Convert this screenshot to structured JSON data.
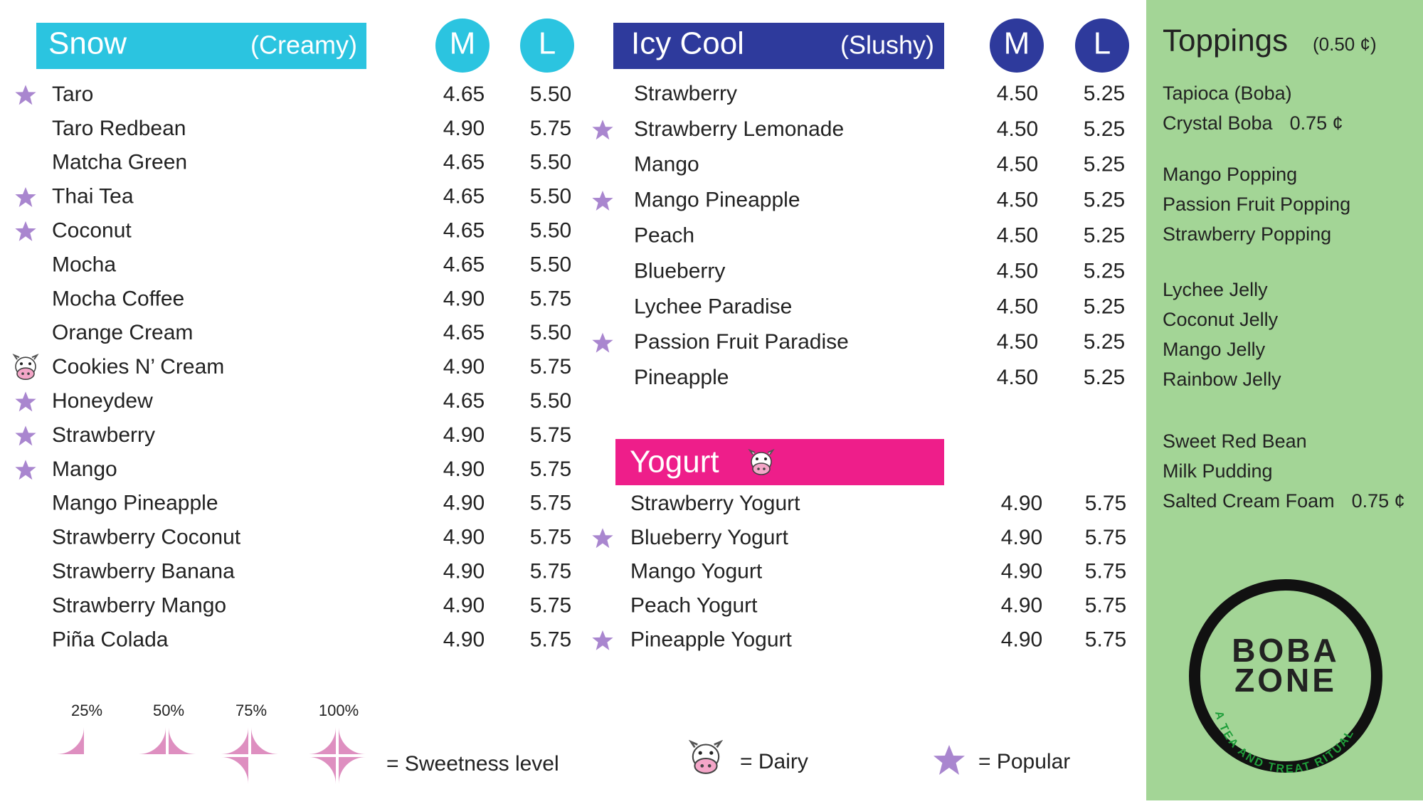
{
  "sections": {
    "snow": {
      "title": "Snow",
      "subtitle": "(Creamy)",
      "sizes": [
        "M",
        "L"
      ],
      "items": [
        {
          "name": "Taro",
          "m": "4.65",
          "l": "5.50",
          "mark": "popular"
        },
        {
          "name": "Taro Redbean",
          "m": "4.90",
          "l": "5.75",
          "mark": null
        },
        {
          "name": "Matcha Green",
          "m": "4.65",
          "l": "5.50",
          "mark": null
        },
        {
          "name": "Thai Tea",
          "m": "4.65",
          "l": "5.50",
          "mark": "popular"
        },
        {
          "name": "Coconut",
          "m": "4.65",
          "l": "5.50",
          "mark": "popular"
        },
        {
          "name": "Mocha",
          "m": "4.65",
          "l": "5.50",
          "mark": null
        },
        {
          "name": "Mocha Coffee",
          "m": "4.90",
          "l": "5.75",
          "mark": null
        },
        {
          "name": "Orange Cream",
          "m": "4.65",
          "l": "5.50",
          "mark": null
        },
        {
          "name": "Cookies N’ Cream",
          "m": "4.90",
          "l": "5.75",
          "mark": "dairy"
        },
        {
          "name": "Honeydew",
          "m": "4.65",
          "l": "5.50",
          "mark": "popular"
        },
        {
          "name": "Strawberry",
          "m": "4.90",
          "l": "5.75",
          "mark": "popular"
        },
        {
          "name": "Mango",
          "m": "4.90",
          "l": "5.75",
          "mark": "popular"
        },
        {
          "name": "Mango Pineapple",
          "m": "4.90",
          "l": "5.75",
          "mark": null
        },
        {
          "name": "Strawberry Coconut",
          "m": "4.90",
          "l": "5.75",
          "mark": null
        },
        {
          "name": "Strawberry Banana",
          "m": "4.90",
          "l": "5.75",
          "mark": null
        },
        {
          "name": "Strawberry Mango",
          "m": "4.90",
          "l": "5.75",
          "mark": null
        },
        {
          "name": "Piña Colada",
          "m": "4.90",
          "l": "5.75",
          "mark": null
        }
      ]
    },
    "icy": {
      "title": "Icy Cool",
      "subtitle": "(Slushy)",
      "sizes": [
        "M",
        "L"
      ],
      "items": [
        {
          "name": "Strawberry",
          "m": "4.50",
          "l": "5.25",
          "mark": null
        },
        {
          "name": "Strawberry Lemonade",
          "m": "4.50",
          "l": "5.25",
          "mark": "popular"
        },
        {
          "name": "Mango",
          "m": "4.50",
          "l": "5.25",
          "mark": null
        },
        {
          "name": "Mango Pineapple",
          "m": "4.50",
          "l": "5.25",
          "mark": "popular"
        },
        {
          "name": "Peach",
          "m": "4.50",
          "l": "5.25",
          "mark": null
        },
        {
          "name": "Blueberry",
          "m": "4.50",
          "l": "5.25",
          "mark": null
        },
        {
          "name": "Lychee Paradise",
          "m": "4.50",
          "l": "5.25",
          "mark": null
        },
        {
          "name": "Passion Fruit Paradise",
          "m": "4.50",
          "l": "5.25",
          "mark": "popular"
        },
        {
          "name": "Pineapple",
          "m": "4.50",
          "l": "5.25",
          "mark": null
        }
      ]
    },
    "yogurt": {
      "title": "Yogurt",
      "items": [
        {
          "name": "Strawberry Yogurt",
          "m": "4.90",
          "l": "5.75",
          "mark": null
        },
        {
          "name": "Blueberry Yogurt",
          "m": "4.90",
          "l": "5.75",
          "mark": "popular"
        },
        {
          "name": "Mango Yogurt",
          "m": "4.90",
          "l": "5.75",
          "mark": null
        },
        {
          "name": "Peach Yogurt",
          "m": "4.90",
          "l": "5.75",
          "mark": null
        },
        {
          "name": "Pineapple Yogurt",
          "m": "4.90",
          "l": "5.75",
          "mark": "popular"
        }
      ]
    }
  },
  "toppings": {
    "title": "Toppings",
    "price": "(0.50 ¢)",
    "groups": [
      [
        {
          "name": "Tapioca (Boba)",
          "price": null
        },
        {
          "name": "Crystal Boba",
          "price": "0.75 ¢"
        }
      ],
      [
        {
          "name": "Mango Popping",
          "price": null
        },
        {
          "name": "Passion Fruit Popping",
          "price": null
        },
        {
          "name": "Strawberry Popping",
          "price": null
        }
      ],
      [
        {
          "name": "Lychee Jelly",
          "price": null
        },
        {
          "name": "Coconut Jelly",
          "price": null
        },
        {
          "name": "Mango Jelly",
          "price": null
        },
        {
          "name": "Rainbow Jelly",
          "price": null
        }
      ],
      [
        {
          "name": "Sweet Red Bean",
          "price": null
        },
        {
          "name": "Milk Pudding",
          "price": null
        },
        {
          "name": "Salted Cream Foam",
          "price": "0.75 ¢"
        }
      ]
    ]
  },
  "logo": {
    "line1": "BOBA",
    "line2": "ZONE",
    "tagline": "A TEA AND TREAT RITUAL"
  },
  "legend": {
    "sweetness_levels": [
      "25%",
      "50%",
      "75%",
      "100%"
    ],
    "sweetness_text": "= Sweetness level",
    "dairy_text": "=  Dairy",
    "popular_text": "=  Popular"
  }
}
